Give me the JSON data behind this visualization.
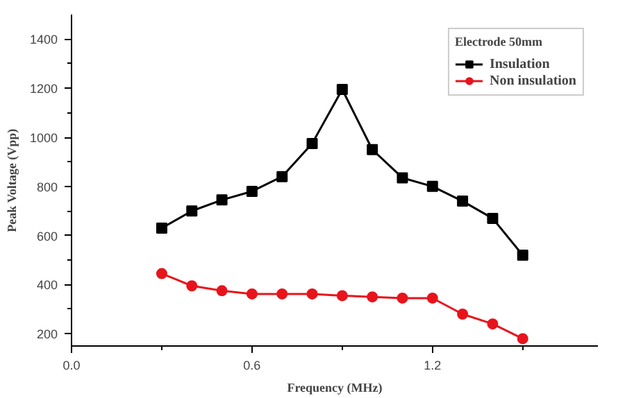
{
  "chart_data": {
    "type": "line",
    "xlabel": "Frequency (MHz)",
    "ylabel": "Peak Voltage (Vpp)",
    "legend_title": "Electrode 50mm",
    "legend": "top right",
    "line_style": "solid",
    "grid": false,
    "x": [
      0.3,
      0.4,
      0.5,
      0.6,
      0.7,
      0.8,
      0.9,
      1.0,
      1.1,
      1.2,
      1.3,
      1.4,
      1.5
    ],
    "xlim": [
      0,
      1.75
    ],
    "xticks": [
      {
        "value": 0,
        "label": "0.0"
      },
      {
        "value": 0.3,
        "label": null
      },
      0.6,
      {
        "value": 0.9,
        "label": null
      },
      1.2,
      {
        "value": 1.5,
        "label": null
      }
    ],
    "ylim": [
      150,
      1500
    ],
    "yticks": [
      200,
      {
        "value": 300,
        "label": null
      },
      400,
      {
        "value": 500,
        "label": null
      },
      600,
      {
        "value": 700,
        "label": null
      },
      800,
      {
        "value": 900,
        "label": null
      },
      1000,
      {
        "value": 1100,
        "label": null
      },
      1200,
      {
        "value": 1300,
        "label": null
      },
      1400
    ],
    "series": [
      {
        "name": "Insulation",
        "color": "#000000",
        "marker": "square",
        "values": [
          630,
          700,
          745,
          780,
          840,
          975,
          1195,
          950,
          835,
          800,
          740,
          670,
          520
        ]
      },
      {
        "name": "Non insulation",
        "color": "#e8141c",
        "marker": "circle",
        "values": [
          445,
          395,
          375,
          362,
          362,
          362,
          355,
          350,
          345,
          345,
          280,
          240,
          180
        ]
      }
    ]
  }
}
